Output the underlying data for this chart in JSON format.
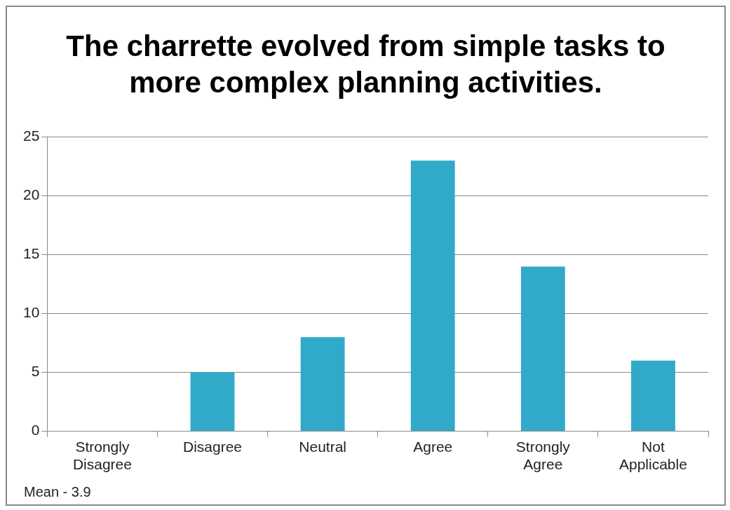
{
  "chart_data": {
    "type": "bar",
    "title": "The charrette evolved from simple tasks to more complex planning activities.",
    "categories": [
      "Strongly Disagree",
      "Disagree",
      "Neutral",
      "Agree",
      "Strongly Agree",
      "Not Applicable"
    ],
    "values": [
      0,
      5,
      8,
      23,
      14,
      6
    ],
    "color": "#31a9c9",
    "ylim": [
      0,
      25
    ],
    "yticks": [
      0,
      5,
      10,
      15,
      20,
      25
    ],
    "grid": "y",
    "annotations": [
      "Mean - 3.9"
    ]
  }
}
